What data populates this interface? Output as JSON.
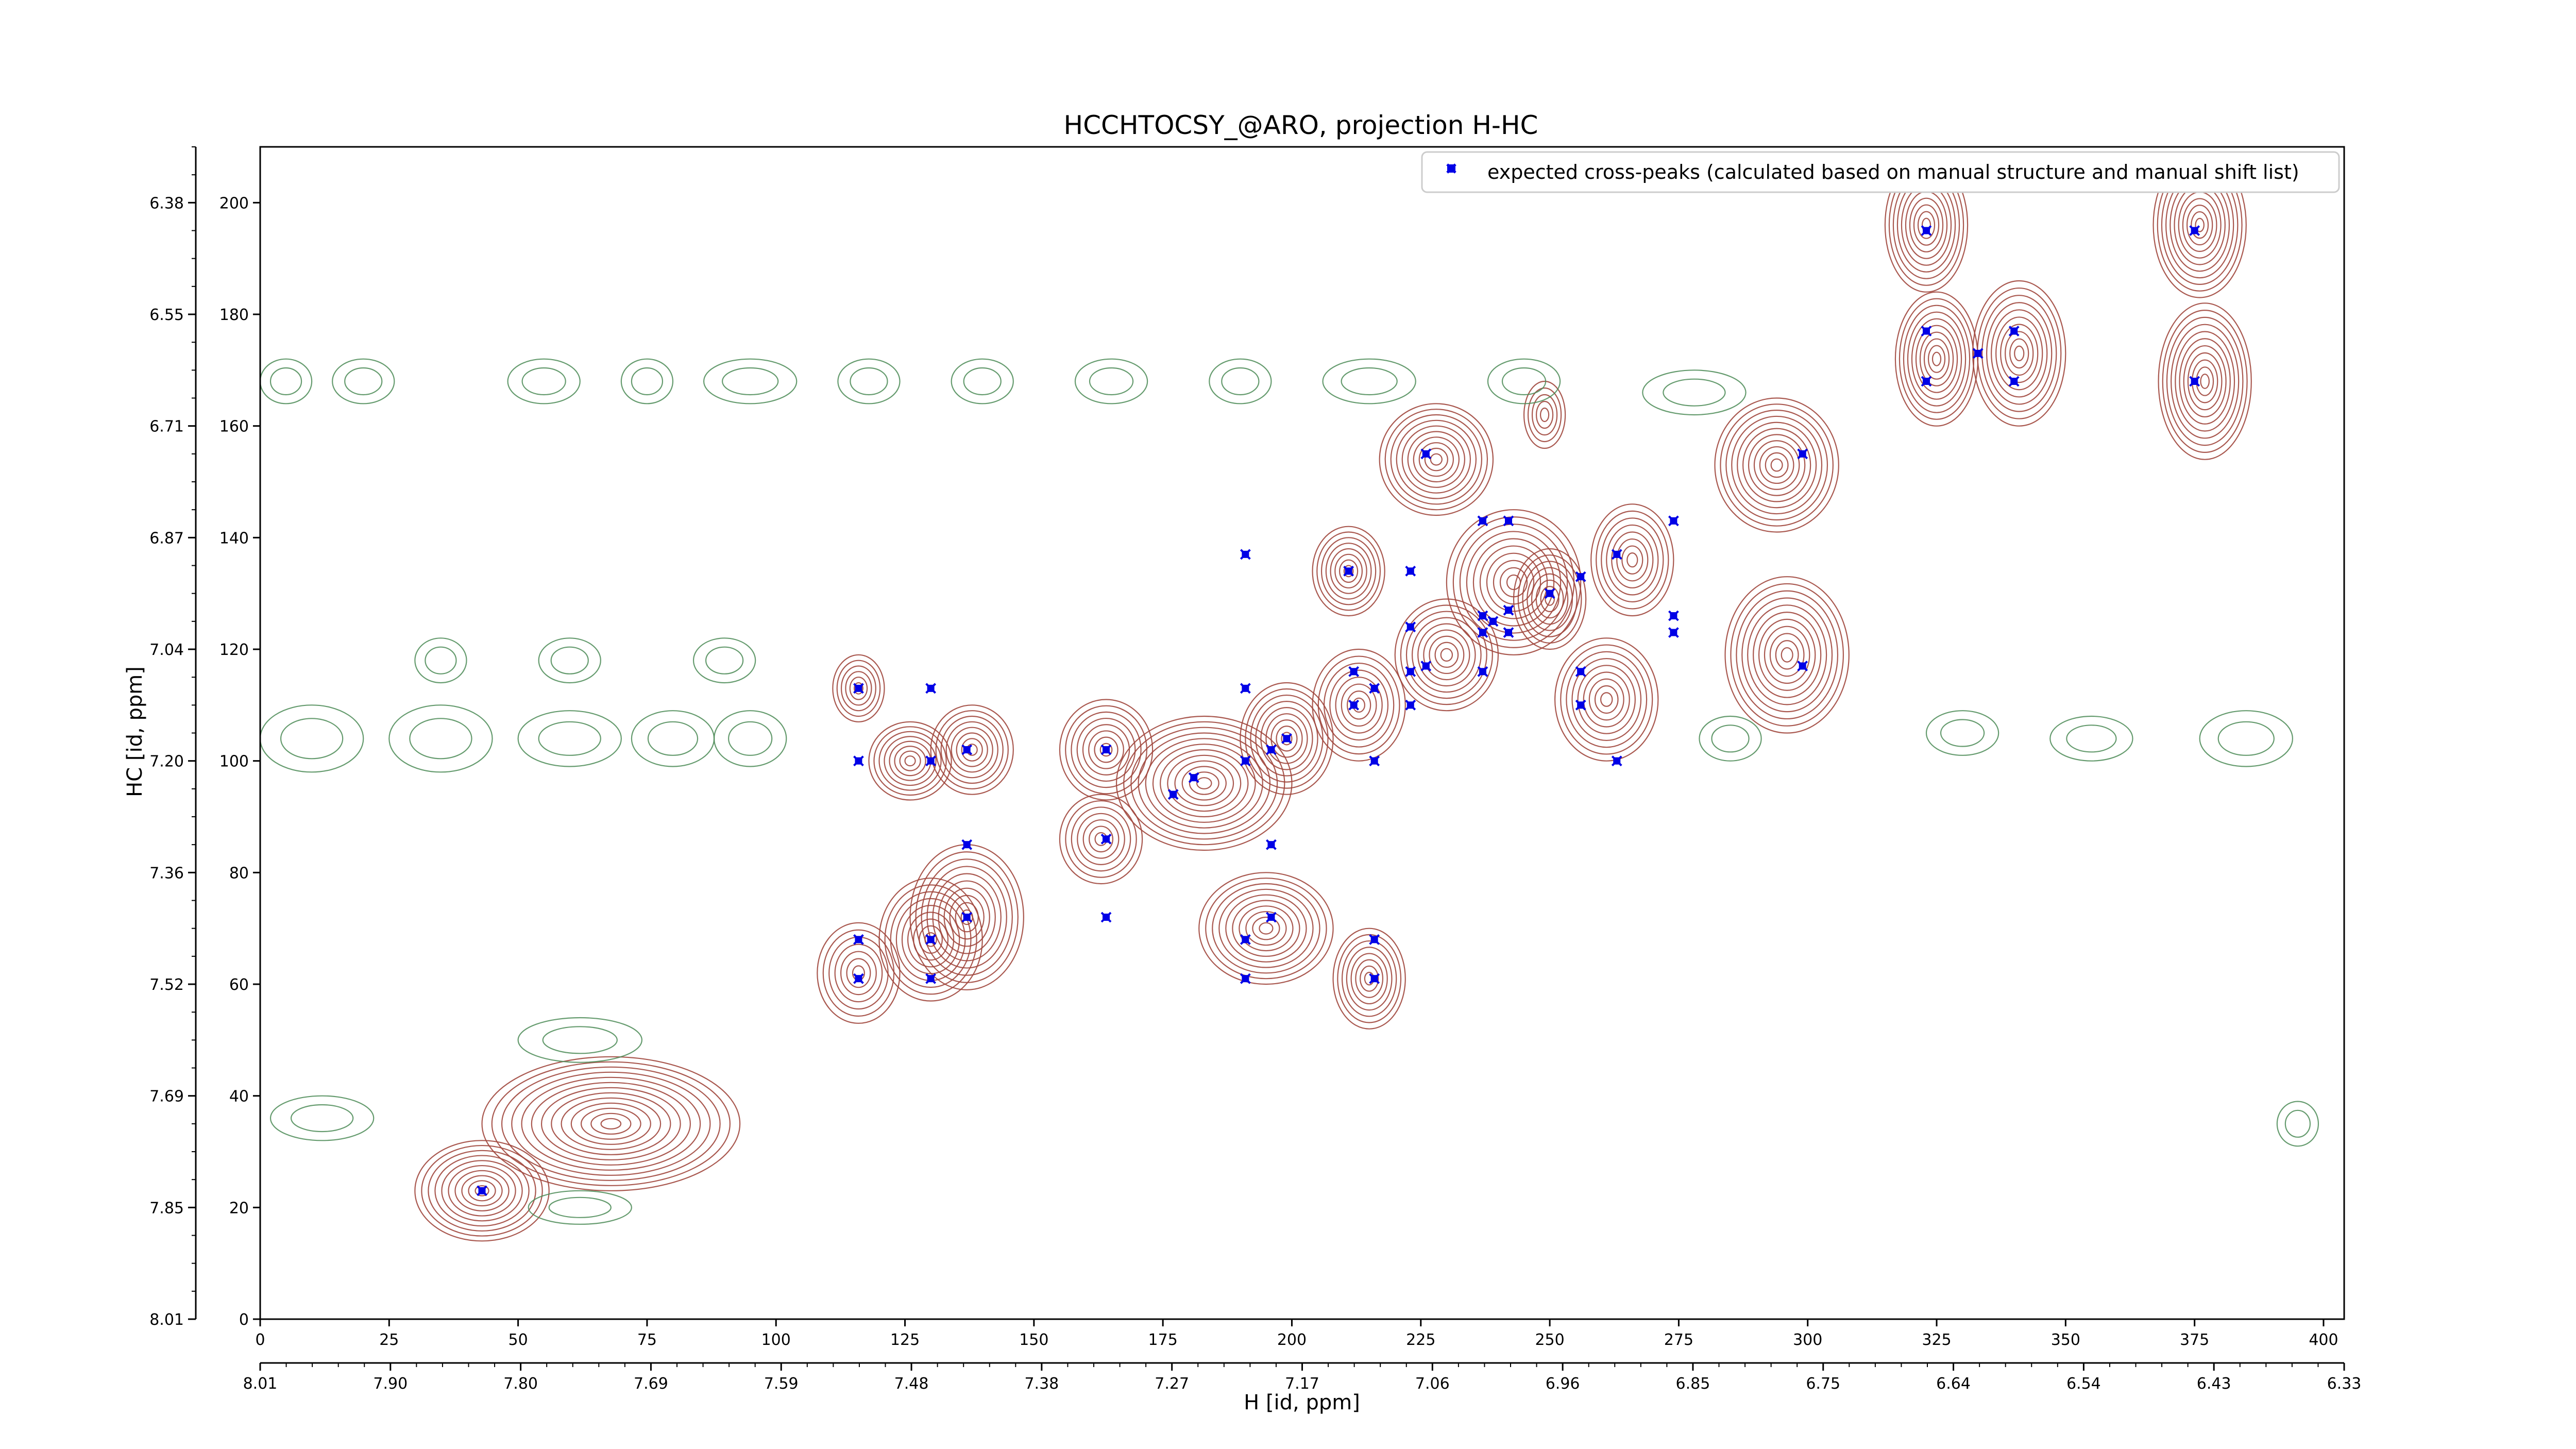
{
  "chart_data": {
    "type": "contour",
    "title": "HCCHTOCSY_@ARO, projection H-HC",
    "xlabel": "H [id, ppm]",
    "ylabel": "HC [id, ppm]",
    "xlim": [
      0,
      404
    ],
    "ylim": [
      0,
      210
    ],
    "x_ticks_index": [
      "0",
      "25",
      "50",
      "75",
      "100",
      "125",
      "150",
      "175",
      "200",
      "225",
      "250",
      "275",
      "300",
      "325",
      "350",
      "375",
      "400"
    ],
    "x_ticks_ppm": [
      "8.01",
      "7.90",
      "7.80",
      "7.69",
      "7.59",
      "7.48",
      "7.38",
      "7.27",
      "7.17",
      "7.06",
      "6.96",
      "6.85",
      "6.75",
      "6.64",
      "6.54",
      "6.43",
      "6.33"
    ],
    "y_ticks_index": [
      "0",
      "20",
      "40",
      "60",
      "80",
      "100",
      "120",
      "140",
      "160",
      "180",
      "200"
    ],
    "y_ticks_ppm": [
      "8.01",
      "7.85",
      "7.69",
      "7.52",
      "7.36",
      "7.20",
      "7.04",
      "6.87",
      "6.71",
      "6.55",
      "6.38"
    ],
    "legend": {
      "label": "expected cross-peaks (calculated based on manual structure and manual shift list)",
      "location": "upper right"
    },
    "colors": {
      "positive": "#a0463c",
      "negative": "#4a8a55",
      "markers": "#0000e6"
    },
    "peaks": [
      {
        "x": 43,
        "y": 23,
        "sx": 13,
        "sy": 9,
        "n": 10
      },
      {
        "x": 68,
        "y": 35,
        "sx": 25,
        "sy": 12,
        "n": 13
      },
      {
        "x": 116,
        "y": 113,
        "sx": 5,
        "sy": 6,
        "n": 6
      },
      {
        "x": 126,
        "y": 100,
        "sx": 8,
        "sy": 7,
        "n": 8
      },
      {
        "x": 138,
        "y": 102,
        "sx": 8,
        "sy": 8,
        "n": 8
      },
      {
        "x": 116,
        "y": 62,
        "sx": 8,
        "sy": 9,
        "n": 7
      },
      {
        "x": 130,
        "y": 68,
        "sx": 10,
        "sy": 11,
        "n": 9
      },
      {
        "x": 137,
        "y": 72,
        "sx": 11,
        "sy": 13,
        "n": 10
      },
      {
        "x": 164,
        "y": 102,
        "sx": 9,
        "sy": 9,
        "n": 8
      },
      {
        "x": 163,
        "y": 86,
        "sx": 8,
        "sy": 8,
        "n": 7
      },
      {
        "x": 183,
        "y": 96,
        "sx": 17,
        "sy": 12,
        "n": 12
      },
      {
        "x": 199,
        "y": 104,
        "sx": 9,
        "sy": 10,
        "n": 9
      },
      {
        "x": 195,
        "y": 70,
        "sx": 13,
        "sy": 10,
        "n": 10
      },
      {
        "x": 215,
        "y": 61,
        "sx": 7,
        "sy": 9,
        "n": 8
      },
      {
        "x": 211,
        "y": 134,
        "sx": 7,
        "sy": 8,
        "n": 8
      },
      {
        "x": 213,
        "y": 110,
        "sx": 9,
        "sy": 10,
        "n": 8
      },
      {
        "x": 228,
        "y": 154,
        "sx": 11,
        "sy": 10,
        "n": 10
      },
      {
        "x": 230,
        "y": 119,
        "sx": 10,
        "sy": 10,
        "n": 9
      },
      {
        "x": 243,
        "y": 132,
        "sx": 13,
        "sy": 13,
        "n": 10
      },
      {
        "x": 250,
        "y": 129,
        "sx": 7,
        "sy": 9,
        "n": 8
      },
      {
        "x": 261,
        "y": 111,
        "sx": 10,
        "sy": 11,
        "n": 9
      },
      {
        "x": 266,
        "y": 136,
        "sx": 8,
        "sy": 10,
        "n": 8
      },
      {
        "x": 249,
        "y": 162,
        "sx": 4,
        "sy": 6,
        "n": 5
      },
      {
        "x": 294,
        "y": 153,
        "sx": 12,
        "sy": 12,
        "n": 11
      },
      {
        "x": 296,
        "y": 119,
        "sx": 12,
        "sy": 14,
        "n": 11
      },
      {
        "x": 323,
        "y": 196,
        "sx": 8,
        "sy": 12,
        "n": 10
      },
      {
        "x": 325,
        "y": 172,
        "sx": 8,
        "sy": 12,
        "n": 10
      },
      {
        "x": 341,
        "y": 173,
        "sx": 9,
        "sy": 13,
        "n": 10
      },
      {
        "x": 376,
        "y": 196,
        "sx": 9,
        "sy": 13,
        "n": 11
      },
      {
        "x": 377,
        "y": 168,
        "sx": 9,
        "sy": 14,
        "n": 11
      }
    ],
    "negative_peaks": [
      {
        "x": 5,
        "y": 168,
        "sx": 5,
        "sy": 4
      },
      {
        "x": 20,
        "y": 168,
        "sx": 6,
        "sy": 4
      },
      {
        "x": 55,
        "y": 168,
        "sx": 7,
        "sy": 4
      },
      {
        "x": 75,
        "y": 168,
        "sx": 5,
        "sy": 4
      },
      {
        "x": 95,
        "y": 168,
        "sx": 9,
        "sy": 4
      },
      {
        "x": 118,
        "y": 168,
        "sx": 6,
        "sy": 4
      },
      {
        "x": 140,
        "y": 168,
        "sx": 6,
        "sy": 4
      },
      {
        "x": 165,
        "y": 168,
        "sx": 7,
        "sy": 4
      },
      {
        "x": 190,
        "y": 168,
        "sx": 6,
        "sy": 4
      },
      {
        "x": 215,
        "y": 168,
        "sx": 9,
        "sy": 4
      },
      {
        "x": 245,
        "y": 168,
        "sx": 7,
        "sy": 4
      },
      {
        "x": 278,
        "y": 166,
        "sx": 10,
        "sy": 4
      },
      {
        "x": 10,
        "y": 104,
        "sx": 10,
        "sy": 6
      },
      {
        "x": 35,
        "y": 104,
        "sx": 10,
        "sy": 6
      },
      {
        "x": 60,
        "y": 104,
        "sx": 10,
        "sy": 5
      },
      {
        "x": 80,
        "y": 104,
        "sx": 8,
        "sy": 5
      },
      {
        "x": 95,
        "y": 104,
        "sx": 7,
        "sy": 5
      },
      {
        "x": 35,
        "y": 118,
        "sx": 5,
        "sy": 4
      },
      {
        "x": 60,
        "y": 118,
        "sx": 6,
        "sy": 4
      },
      {
        "x": 90,
        "y": 118,
        "sx": 6,
        "sy": 4
      },
      {
        "x": 285,
        "y": 104,
        "sx": 6,
        "sy": 4
      },
      {
        "x": 330,
        "y": 105,
        "sx": 7,
        "sy": 4
      },
      {
        "x": 355,
        "y": 104,
        "sx": 8,
        "sy": 4
      },
      {
        "x": 385,
        "y": 104,
        "sx": 9,
        "sy": 5
      },
      {
        "x": 12,
        "y": 36,
        "sx": 10,
        "sy": 4
      },
      {
        "x": 62,
        "y": 50,
        "sx": 12,
        "sy": 4
      },
      {
        "x": 62,
        "y": 20,
        "sx": 10,
        "sy": 3
      },
      {
        "x": 395,
        "y": 35,
        "sx": 4,
        "sy": 4
      }
    ],
    "markers": [
      [
        43,
        23
      ],
      [
        116,
        113
      ],
      [
        130,
        113
      ],
      [
        116,
        100
      ],
      [
        130,
        100
      ],
      [
        137,
        102
      ],
      [
        137,
        85
      ],
      [
        116,
        68
      ],
      [
        130,
        68
      ],
      [
        137,
        72
      ],
      [
        116,
        61
      ],
      [
        130,
        61
      ],
      [
        164,
        102
      ],
      [
        164,
        86
      ],
      [
        164,
        72
      ],
      [
        181,
        97
      ],
      [
        177,
        94
      ],
      [
        191,
        113
      ],
      [
        191,
        100
      ],
      [
        191,
        68
      ],
      [
        191,
        61
      ],
      [
        196,
        102
      ],
      [
        199,
        104
      ],
      [
        196,
        85
      ],
      [
        196,
        72
      ],
      [
        212,
        116
      ],
      [
        212,
        110
      ],
      [
        216,
        113
      ],
      [
        216,
        100
      ],
      [
        211,
        134
      ],
      [
        216,
        68
      ],
      [
        216,
        61
      ],
      [
        191,
        137
      ],
      [
        223,
        134
      ],
      [
        223,
        124
      ],
      [
        223,
        116
      ],
      [
        223,
        110
      ],
      [
        226,
        117
      ],
      [
        226,
        155
      ],
      [
        237,
        143
      ],
      [
        237,
        126
      ],
      [
        237,
        123
      ],
      [
        237,
        116
      ],
      [
        239,
        125
      ],
      [
        242,
        127
      ],
      [
        242,
        123
      ],
      [
        242,
        143
      ],
      [
        250,
        130
      ],
      [
        256,
        133
      ],
      [
        256,
        116
      ],
      [
        256,
        110
      ],
      [
        263,
        137
      ],
      [
        263,
        100
      ],
      [
        274,
        143
      ],
      [
        274,
        126
      ],
      [
        274,
        123
      ],
      [
        299,
        155
      ],
      [
        299,
        117
      ],
      [
        323,
        195
      ],
      [
        323,
        177
      ],
      [
        323,
        168
      ],
      [
        333,
        173
      ],
      [
        340,
        177
      ],
      [
        340,
        168
      ],
      [
        375,
        195
      ],
      [
        375,
        168
      ]
    ]
  }
}
